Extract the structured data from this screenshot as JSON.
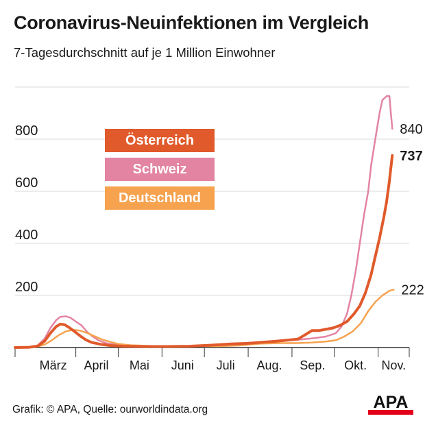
{
  "header": {
    "title": "Coronavirus-Neuinfektionen im Vergleich",
    "subtitle": "7-Tagesdurchschnitt auf je 1 Million Einwohner"
  },
  "footer": {
    "source": "Grafik: © APA, Quelle: ourworldindata.org",
    "logo_text": "APA"
  },
  "colors": {
    "oesterreich": "#e05a2b",
    "schweiz": "#e384a3",
    "deutschland": "#f6a24e",
    "grid": "#d9d9d9",
    "axis": "#333333"
  },
  "chart_data": {
    "type": "line",
    "ylim": [
      0,
      1000
    ],
    "yticks": [
      200,
      400,
      600,
      800
    ],
    "xlim": [
      "2020-02-18",
      "2020-11-23"
    ],
    "month_labels": [
      {
        "label": "März",
        "start": "2020-03-01",
        "end": "2020-03-31"
      },
      {
        "label": "April",
        "start": "2020-04-01",
        "end": "2020-04-30"
      },
      {
        "label": "Mai",
        "start": "2020-05-01",
        "end": "2020-05-31"
      },
      {
        "label": "Juni",
        "start": "2020-06-01",
        "end": "2020-06-30"
      },
      {
        "label": "Juli",
        "start": "2020-07-01",
        "end": "2020-07-31"
      },
      {
        "label": "Aug.",
        "start": "2020-08-01",
        "end": "2020-08-31"
      },
      {
        "label": "Sep.",
        "start": "2020-09-01",
        "end": "2020-09-30"
      },
      {
        "label": "Okt.",
        "start": "2020-10-01",
        "end": "2020-10-31"
      },
      {
        "label": "Nov.",
        "start": "2020-11-01",
        "end": "2020-11-23"
      }
    ],
    "legend": [
      {
        "key": "oesterreich",
        "label": "Österreich"
      },
      {
        "key": "schweiz",
        "label": "Schweiz"
      },
      {
        "key": "deutschland",
        "label": "Deutschland"
      }
    ],
    "series": [
      {
        "key": "schweiz",
        "name": "Schweiz",
        "end_label": "840",
        "end_bold": false,
        "stroke": 2.5,
        "points": [
          [
            "2020-02-18",
            0
          ],
          [
            "2020-02-28",
            1
          ],
          [
            "2020-03-05",
            8
          ],
          [
            "2020-03-10",
            35
          ],
          [
            "2020-03-14",
            75
          ],
          [
            "2020-03-18",
            105
          ],
          [
            "2020-03-21",
            118
          ],
          [
            "2020-03-25",
            120
          ],
          [
            "2020-03-28",
            115
          ],
          [
            "2020-04-01",
            100
          ],
          [
            "2020-04-05",
            85
          ],
          [
            "2020-04-09",
            60
          ],
          [
            "2020-04-13",
            42
          ],
          [
            "2020-04-17",
            28
          ],
          [
            "2020-04-23",
            16
          ],
          [
            "2020-04-30",
            10
          ],
          [
            "2020-05-10",
            5
          ],
          [
            "2020-05-25",
            3
          ],
          [
            "2020-06-10",
            3
          ],
          [
            "2020-06-25",
            5
          ],
          [
            "2020-07-10",
            10
          ],
          [
            "2020-07-25",
            14
          ],
          [
            "2020-08-10",
            18
          ],
          [
            "2020-08-25",
            26
          ],
          [
            "2020-09-05",
            30
          ],
          [
            "2020-09-15",
            35
          ],
          [
            "2020-09-25",
            42
          ],
          [
            "2020-10-02",
            55
          ],
          [
            "2020-10-06",
            80
          ],
          [
            "2020-10-10",
            130
          ],
          [
            "2020-10-13",
            200
          ],
          [
            "2020-10-16",
            290
          ],
          [
            "2020-10-19",
            400
          ],
          [
            "2020-10-22",
            510
          ],
          [
            "2020-10-25",
            600
          ],
          [
            "2020-10-27",
            700
          ],
          [
            "2020-10-30",
            800
          ],
          [
            "2020-11-02",
            900
          ],
          [
            "2020-11-04",
            950
          ],
          [
            "2020-11-07",
            965
          ],
          [
            "2020-11-09",
            965
          ],
          [
            "2020-11-10",
            900
          ],
          [
            "2020-11-11",
            840
          ]
        ]
      },
      {
        "key": "deutschland",
        "name": "Deutschland",
        "end_label": "222",
        "end_bold": false,
        "stroke": 2.5,
        "points": [
          [
            "2020-02-18",
            0
          ],
          [
            "2020-02-28",
            0
          ],
          [
            "2020-03-05",
            4
          ],
          [
            "2020-03-10",
            12
          ],
          [
            "2020-03-15",
            28
          ],
          [
            "2020-03-20",
            48
          ],
          [
            "2020-03-25",
            62
          ],
          [
            "2020-03-30",
            68
          ],
          [
            "2020-04-04",
            65
          ],
          [
            "2020-04-09",
            56
          ],
          [
            "2020-04-14",
            44
          ],
          [
            "2020-04-19",
            32
          ],
          [
            "2020-04-25",
            22
          ],
          [
            "2020-05-01",
            14
          ],
          [
            "2020-05-10",
            9
          ],
          [
            "2020-05-25",
            6
          ],
          [
            "2020-06-10",
            4
          ],
          [
            "2020-06-25",
            6
          ],
          [
            "2020-07-10",
            5
          ],
          [
            "2020-07-25",
            8
          ],
          [
            "2020-08-10",
            15
          ],
          [
            "2020-08-25",
            17
          ],
          [
            "2020-09-05",
            17
          ],
          [
            "2020-09-15",
            19
          ],
          [
            "2020-09-25",
            23
          ],
          [
            "2020-10-02",
            28
          ],
          [
            "2020-10-08",
            42
          ],
          [
            "2020-10-14",
            62
          ],
          [
            "2020-10-20",
            95
          ],
          [
            "2020-10-25",
            140
          ],
          [
            "2020-10-30",
            175
          ],
          [
            "2020-11-04",
            200
          ],
          [
            "2020-11-09",
            218
          ],
          [
            "2020-11-12",
            222
          ]
        ]
      },
      {
        "key": "oesterreich",
        "name": "Österreich",
        "end_label": "737",
        "end_bold": true,
        "stroke": 4,
        "points": [
          [
            "2020-02-18",
            0
          ],
          [
            "2020-02-28",
            1
          ],
          [
            "2020-03-05",
            6
          ],
          [
            "2020-03-10",
            25
          ],
          [
            "2020-03-14",
            55
          ],
          [
            "2020-03-18",
            80
          ],
          [
            "2020-03-21",
            90
          ],
          [
            "2020-03-24",
            88
          ],
          [
            "2020-03-27",
            78
          ],
          [
            "2020-03-31",
            62
          ],
          [
            "2020-04-04",
            45
          ],
          [
            "2020-04-08",
            30
          ],
          [
            "2020-04-12",
            20
          ],
          [
            "2020-04-18",
            13
          ],
          [
            "2020-04-25",
            8
          ],
          [
            "2020-05-05",
            5
          ],
          [
            "2020-05-20",
            4
          ],
          [
            "2020-06-05",
            4
          ],
          [
            "2020-06-20",
            5
          ],
          [
            "2020-07-05",
            9
          ],
          [
            "2020-07-20",
            14
          ],
          [
            "2020-08-01",
            16
          ],
          [
            "2020-08-10",
            20
          ],
          [
            "2020-08-20",
            24
          ],
          [
            "2020-08-28",
            28
          ],
          [
            "2020-09-05",
            32
          ],
          [
            "2020-09-10",
            48
          ],
          [
            "2020-09-15",
            65
          ],
          [
            "2020-09-20",
            65
          ],
          [
            "2020-09-25",
            70
          ],
          [
            "2020-09-30",
            75
          ],
          [
            "2020-10-05",
            85
          ],
          [
            "2020-10-10",
            100
          ],
          [
            "2020-10-15",
            130
          ],
          [
            "2020-10-19",
            160
          ],
          [
            "2020-10-23",
            210
          ],
          [
            "2020-10-27",
            280
          ],
          [
            "2020-10-30",
            350
          ],
          [
            "2020-11-02",
            420
          ],
          [
            "2020-11-05",
            500
          ],
          [
            "2020-11-07",
            560
          ],
          [
            "2020-11-09",
            640
          ],
          [
            "2020-11-10",
            690
          ],
          [
            "2020-11-11",
            737
          ]
        ]
      }
    ]
  }
}
